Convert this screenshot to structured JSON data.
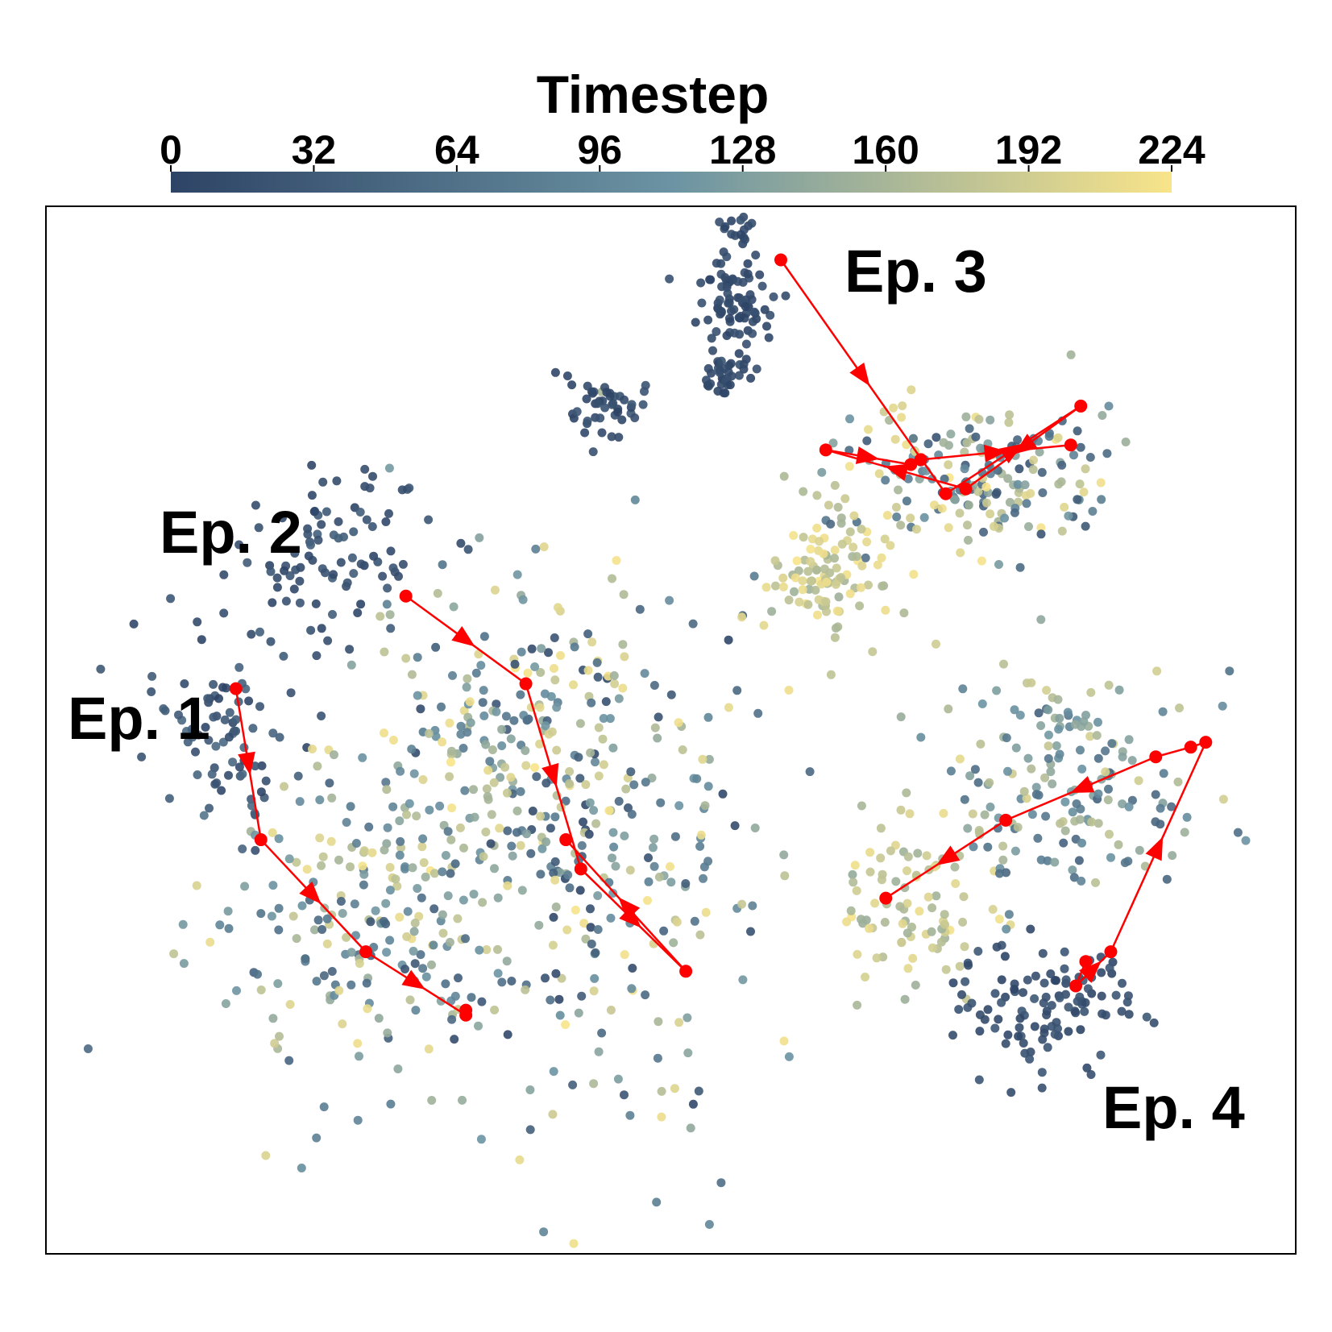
{
  "chart_data": {
    "type": "scatter",
    "colorbar": {
      "title": "Timestep",
      "min": 0,
      "max": 224,
      "ticks": [
        0,
        32,
        64,
        96,
        128,
        160,
        192,
        224
      ],
      "tick_labels": [
        "0",
        "32",
        "64",
        "96",
        "128",
        "160",
        "192",
        "224"
      ],
      "colors": [
        "#2e4466",
        "#6b93a3",
        "#f8e48a"
      ]
    },
    "trajectory_color": "#ff0000",
    "axes": {
      "ticks_visible": false,
      "grid": false,
      "frame": true
    },
    "episodes": [
      {
        "label": "Ep. 1",
        "path": [
          [
            -8.2,
            1.6
          ],
          [
            -7.7,
            -1.5
          ],
          [
            -5.6,
            -3.8
          ],
          [
            -3.6,
            -5.1
          ],
          [
            -3.6,
            -5.0
          ]
        ]
      },
      {
        "label": "Ep. 2",
        "path": [
          [
            -4.8,
            3.5
          ],
          [
            -2.4,
            1.7
          ],
          [
            -1.3,
            -2.1
          ],
          [
            0.8,
            -4.2
          ],
          [
            -1.6,
            -1.5
          ]
        ]
      },
      {
        "label": "Ep. 3",
        "path": [
          [
            2.7,
            10.4
          ],
          [
            6.0,
            5.6
          ],
          [
            8.7,
            7.4
          ],
          [
            6.4,
            5.7
          ],
          [
            3.6,
            6.5
          ],
          [
            5.3,
            6.2
          ],
          [
            5.5,
            6.3
          ],
          [
            8.5,
            6.6
          ]
        ]
      },
      {
        "label": "Ep. 4",
        "path": [
          [
            8.8,
            -4.0
          ],
          [
            8.6,
            -4.5
          ],
          [
            9.3,
            -3.8
          ],
          [
            11.2,
            0.5
          ],
          [
            10.9,
            0.4
          ],
          [
            10.2,
            0.2
          ],
          [
            7.2,
            -1.1
          ],
          [
            4.8,
            -2.7
          ]
        ]
      }
    ],
    "clusters": [
      {
        "cx": -6.3,
        "cy": 4.4,
        "sx": 1.3,
        "sy": 1.1,
        "n": 90,
        "t": [
          0,
          40
        ]
      },
      {
        "cx": -8.4,
        "cy": 0.8,
        "sx": 0.9,
        "sy": 1.3,
        "n": 85,
        "t": [
          0,
          55
        ]
      },
      {
        "cx": -6.0,
        "cy": -3.2,
        "sx": 1.9,
        "sy": 2.1,
        "n": 190,
        "t": [
          40,
          224
        ]
      },
      {
        "cx": -1.4,
        "cy": -1.4,
        "sx": 2.5,
        "sy": 3.6,
        "n": 330,
        "t": [
          0,
          224
        ]
      },
      {
        "cx": -3.4,
        "cy": 0.5,
        "sx": 1.4,
        "sy": 2.0,
        "n": 110,
        "t": [
          60,
          224
        ]
      },
      {
        "cx": -0.8,
        "cy": 7.3,
        "sx": 0.6,
        "sy": 0.4,
        "n": 45,
        "t": [
          0,
          25
        ]
      },
      {
        "cx": 1.8,
        "cy": 9.5,
        "sx": 0.5,
        "sy": 0.7,
        "n": 85,
        "t": [
          0,
          20
        ]
      },
      {
        "cx": 1.6,
        "cy": 8.0,
        "sx": 0.3,
        "sy": 0.3,
        "n": 30,
        "t": [
          0,
          20
        ]
      },
      {
        "cx": 1.9,
        "cy": 11.1,
        "sx": 0.3,
        "sy": 0.3,
        "n": 16,
        "t": [
          0,
          20
        ]
      },
      {
        "cx": 6.8,
        "cy": 6.0,
        "sx": 1.6,
        "sy": 0.9,
        "n": 190,
        "t": [
          20,
          224
        ]
      },
      {
        "cx": 3.6,
        "cy": 3.9,
        "sx": 0.7,
        "sy": 0.9,
        "n": 110,
        "t": [
          150,
          224
        ]
      },
      {
        "cx": 5.5,
        "cy": -2.8,
        "sx": 1.0,
        "sy": 1.3,
        "n": 95,
        "t": [
          150,
          224
        ]
      },
      {
        "cx": 8.5,
        "cy": -0.4,
        "sx": 1.6,
        "sy": 1.7,
        "n": 170,
        "t": [
          40,
          200
        ]
      },
      {
        "cx": 8.0,
        "cy": -4.9,
        "sx": 1.1,
        "sy": 0.8,
        "n": 110,
        "t": [
          0,
          30
        ]
      }
    ]
  },
  "annotations": {
    "ep1": "Ep. 1",
    "ep2": "Ep. 2",
    "ep3": "Ep. 3",
    "ep4": "Ep. 4"
  }
}
